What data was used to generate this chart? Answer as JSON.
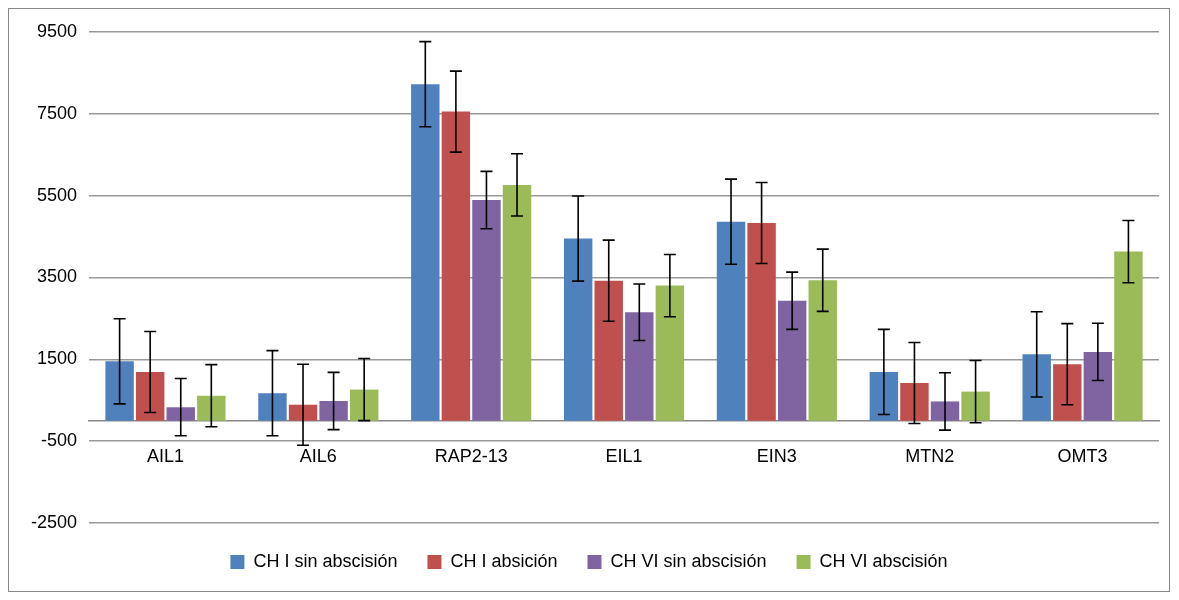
{
  "chart_data": {
    "type": "bar",
    "categories": [
      "AIL1",
      "AIL6",
      "RAP2-13",
      "EIL1",
      "EIN3",
      "MTN2",
      "OMT3"
    ],
    "series": [
      {
        "name": "CH I sin abscisión",
        "color": "#4f81bd",
        "values": [
          1450,
          670,
          8220,
          4450,
          4860,
          1190,
          1620
        ],
        "errors": [
          1040,
          1040,
          1040,
          1040,
          1040,
          1040,
          1040
        ]
      },
      {
        "name": "CH I absición",
        "color": "#c0504d",
        "values": [
          1190,
          390,
          7550,
          3420,
          4830,
          920,
          1380
        ],
        "errors": [
          990,
          990,
          990,
          990,
          990,
          990,
          990
        ]
      },
      {
        "name": "CH VI sin abscisión",
        "color": "#8064a2",
        "values": [
          330,
          480,
          5390,
          2650,
          2930,
          470,
          1680
        ],
        "errors": [
          700,
          700,
          700,
          690,
          700,
          700,
          700
        ]
      },
      {
        "name": "CH VI abscisión",
        "color": "#9bbb59",
        "values": [
          610,
          760,
          5760,
          3300,
          3430,
          710,
          4130
        ],
        "errors": [
          760,
          760,
          760,
          760,
          760,
          760,
          760
        ]
      }
    ],
    "ylim": [
      -2500,
      9500
    ],
    "yticks": [
      -2500,
      -500,
      1500,
      3500,
      5500,
      7500,
      9500
    ],
    "grid": "y",
    "legend": "bottom"
  }
}
